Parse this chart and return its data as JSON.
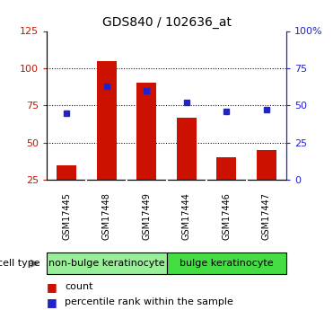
{
  "title": "GDS840 / 102636_at",
  "samples": [
    "GSM17445",
    "GSM17448",
    "GSM17449",
    "GSM17444",
    "GSM17446",
    "GSM17447"
  ],
  "counts": [
    35,
    105,
    90,
    67,
    40,
    45
  ],
  "percentile_ranks": [
    45,
    63,
    60,
    52,
    46,
    47
  ],
  "bar_color": "#cc1100",
  "dot_color": "#2222cc",
  "ylim_left": [
    25,
    125
  ],
  "ylim_right": [
    0,
    100
  ],
  "yticks_left": [
    25,
    50,
    75,
    100,
    125
  ],
  "ytick_labels_left": [
    "25",
    "50",
    "75",
    "100",
    "125"
  ],
  "yticks_right": [
    0,
    25,
    50,
    75,
    100
  ],
  "ytick_labels_right": [
    "0",
    "25",
    "50",
    "75",
    "100%"
  ],
  "hgrid_at": [
    50,
    75,
    100
  ],
  "groups": [
    {
      "label": "non-bulge keratinocyte",
      "indices": [
        0,
        1,
        2
      ],
      "color": "#99ee99"
    },
    {
      "label": "bulge keratinocyte",
      "indices": [
        3,
        4,
        5
      ],
      "color": "#44dd44"
    }
  ],
  "sample_box_color": "#cccccc",
  "cell_type_label": "cell type",
  "legend_count_label": "count",
  "legend_percentile_label": "percentile rank within the sample",
  "bar_width": 0.5,
  "bar_bottom": 25,
  "title_fontsize": 10,
  "tick_fontsize": 8,
  "legend_fontsize": 8,
  "sample_fontsize": 7,
  "group_fontsize": 8,
  "cell_type_fontsize": 8
}
